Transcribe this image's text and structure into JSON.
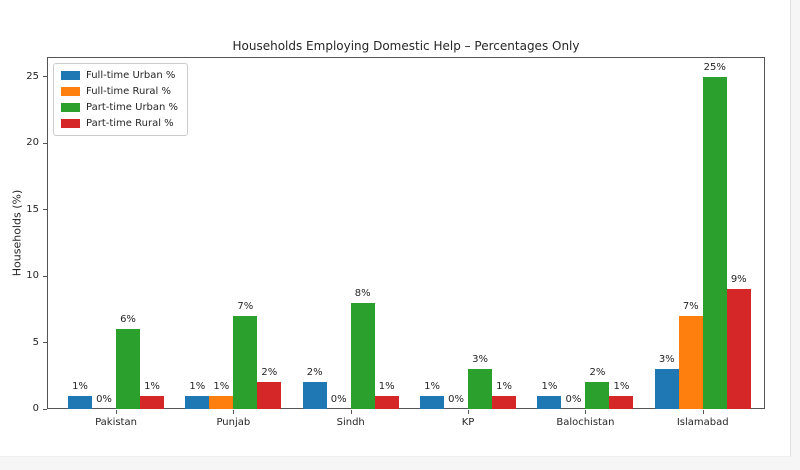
{
  "figure": {
    "background": "#ffffff",
    "page_background": "#f6f6f6",
    "spine_color": "#555555",
    "text_color": "#262626"
  },
  "chart_data": {
    "type": "bar",
    "title": "Households Employing Domestic Help – Percentages Only",
    "xlabel": "",
    "ylabel": "Households (%)",
    "categories": [
      "Pakistan",
      "Punjab",
      "Sindh",
      "KP",
      "Balochistan",
      "Islamabad"
    ],
    "series": [
      {
        "name": "Full-time Urban %",
        "color": "#1f77b4",
        "values": [
          1,
          1,
          2,
          1,
          1,
          3
        ]
      },
      {
        "name": "Full-time Rural %",
        "color": "#ff7f0e",
        "values": [
          0,
          1,
          0,
          0,
          0,
          7
        ]
      },
      {
        "name": "Part-time Urban %",
        "color": "#2ca02c",
        "values": [
          6,
          7,
          8,
          3,
          2,
          25
        ]
      },
      {
        "name": "Part-time Rural %",
        "color": "#d62728",
        "values": [
          1,
          2,
          1,
          1,
          1,
          9
        ]
      }
    ],
    "bar_labels": {
      "Full-time Urban %": [
        "1%",
        "1%",
        "2%",
        "1%",
        "1%",
        "3%"
      ],
      "Full-time Rural %": [
        "0%",
        "1%",
        "0%",
        "0%",
        "0%",
        "7%"
      ],
      "Part-time Urban %": [
        "6%",
        "7%",
        "8%",
        "3%",
        "2%",
        "25%"
      ],
      "Part-time Rural %": [
        "1%",
        "2%",
        "1%",
        "1%",
        "1%",
        "9%"
      ]
    },
    "value_suffix": "%",
    "yticks": [
      0,
      5,
      10,
      15,
      20,
      25
    ],
    "ylim": [
      0,
      26.5
    ],
    "grid": false,
    "legend_position": "upper-left"
  }
}
